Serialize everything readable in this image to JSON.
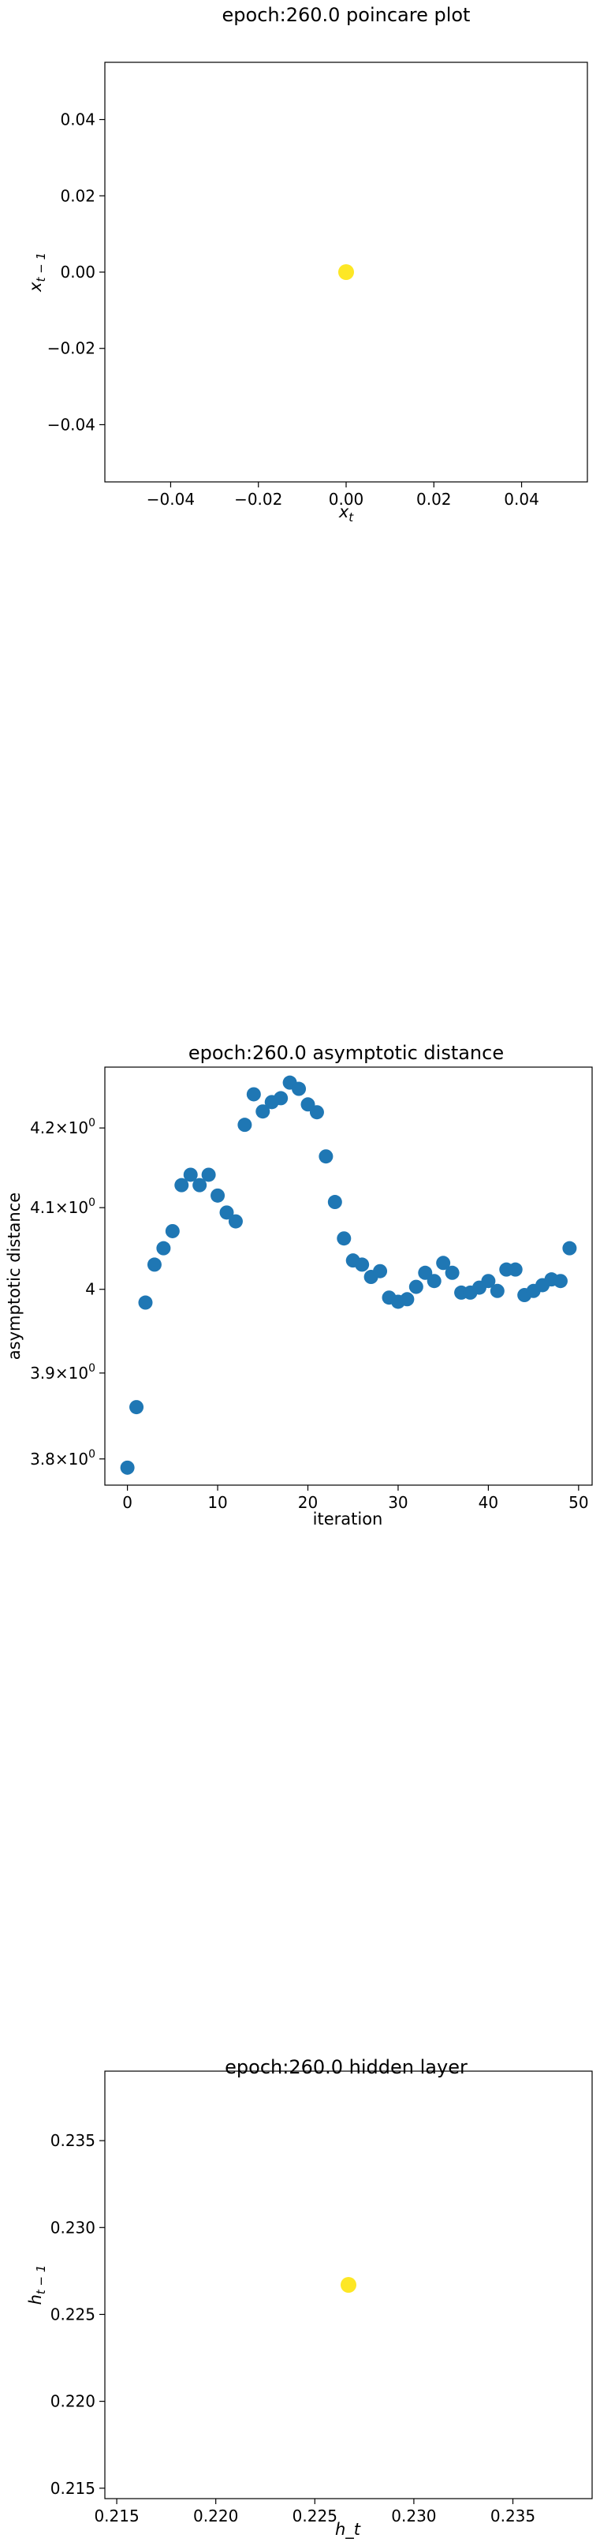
{
  "chart_data": [
    {
      "type": "scatter",
      "title": "epoch:260.0 poincare plot",
      "xlabel": "x_t",
      "ylabel": "x_{t-1}",
      "xlim": [
        -0.055,
        0.055
      ],
      "ylim": [
        -0.055,
        0.055
      ],
      "xticks": [
        -0.04,
        -0.02,
        0.0,
        0.02,
        0.04
      ],
      "yticks": [
        -0.04,
        -0.02,
        0.0,
        0.02,
        0.04
      ],
      "xtick_labels": [
        "−0.04",
        "−0.02",
        "0.00",
        "0.02",
        "0.04"
      ],
      "ytick_labels": [
        "−0.04",
        "−0.02",
        "0.00",
        "0.02",
        "0.04"
      ],
      "points": [
        {
          "x": 0.0,
          "y": 0.0
        }
      ],
      "color": "#fde725",
      "grid": false
    },
    {
      "type": "scatter",
      "title": "epoch:260.0 asymptotic distance",
      "xlabel": "iteration",
      "ylabel": "asymptotic distance",
      "xlim": [
        -2.5,
        51.5
      ],
      "ylim": [
        3.77,
        4.278
      ],
      "yscale": "log",
      "xticks": [
        0,
        10,
        20,
        30,
        40,
        50
      ],
      "xtick_labels": [
        "0",
        "10",
        "20",
        "30",
        "40",
        "50"
      ],
      "yticks": [
        3.8,
        3.9,
        4.0,
        4.1,
        4.2
      ],
      "ytick_labels": [
        {
          "base": "3.8",
          "sup": "0"
        },
        {
          "base": "3.9",
          "sup": "0"
        },
        {
          "base": "4",
          "sup": ""
        },
        {
          "base": "4.1",
          "sup": "0"
        },
        {
          "base": "4.2",
          "sup": "0"
        }
      ],
      "x": [
        0,
        1,
        2,
        3,
        4,
        5,
        6,
        7,
        8,
        9,
        10,
        11,
        12,
        13,
        14,
        15,
        16,
        17,
        18,
        19,
        20,
        21,
        22,
        23,
        24,
        25,
        26,
        27,
        28,
        29,
        30,
        31,
        32,
        33,
        34,
        35,
        36,
        37,
        38,
        39,
        40,
        41,
        42,
        43,
        44,
        45,
        46,
        47,
        48,
        49
      ],
      "y": [
        3.79,
        3.86,
        3.984,
        4.03,
        4.05,
        4.071,
        4.128,
        4.141,
        4.128,
        4.141,
        4.115,
        4.094,
        4.083,
        4.204,
        4.243,
        4.221,
        4.233,
        4.238,
        4.258,
        4.25,
        4.23,
        4.22,
        4.164,
        4.107,
        4.062,
        4.035,
        4.03,
        4.015,
        4.022,
        3.99,
        3.985,
        3.988,
        4.003,
        4.02,
        4.01,
        4.032,
        4.02,
        3.996,
        3.996,
        4.002,
        4.01,
        3.998,
        4.024,
        4.024,
        3.993,
        3.998,
        4.005,
        4.012,
        4.01,
        4.05
      ],
      "color": "#1f77b4",
      "grid": false
    },
    {
      "type": "scatter",
      "title": "epoch:260.0 hidden layer",
      "xlabel": "h_t",
      "ylabel": "h_{t-1}",
      "xlim": [
        0.2144,
        0.239
      ],
      "ylim": [
        0.2144,
        0.239
      ],
      "xticks": [
        0.215,
        0.22,
        0.225,
        0.23,
        0.235
      ],
      "yticks": [
        0.215,
        0.22,
        0.225,
        0.23,
        0.235
      ],
      "xtick_labels": [
        "0.215",
        "0.220",
        "0.225",
        "0.230",
        "0.235"
      ],
      "ytick_labels": [
        "0.215",
        "0.220",
        "0.225",
        "0.230",
        "0.235"
      ],
      "points": [
        {
          "x": 0.2267,
          "y": 0.2267
        }
      ],
      "color": "#fde725",
      "grid": false
    }
  ]
}
